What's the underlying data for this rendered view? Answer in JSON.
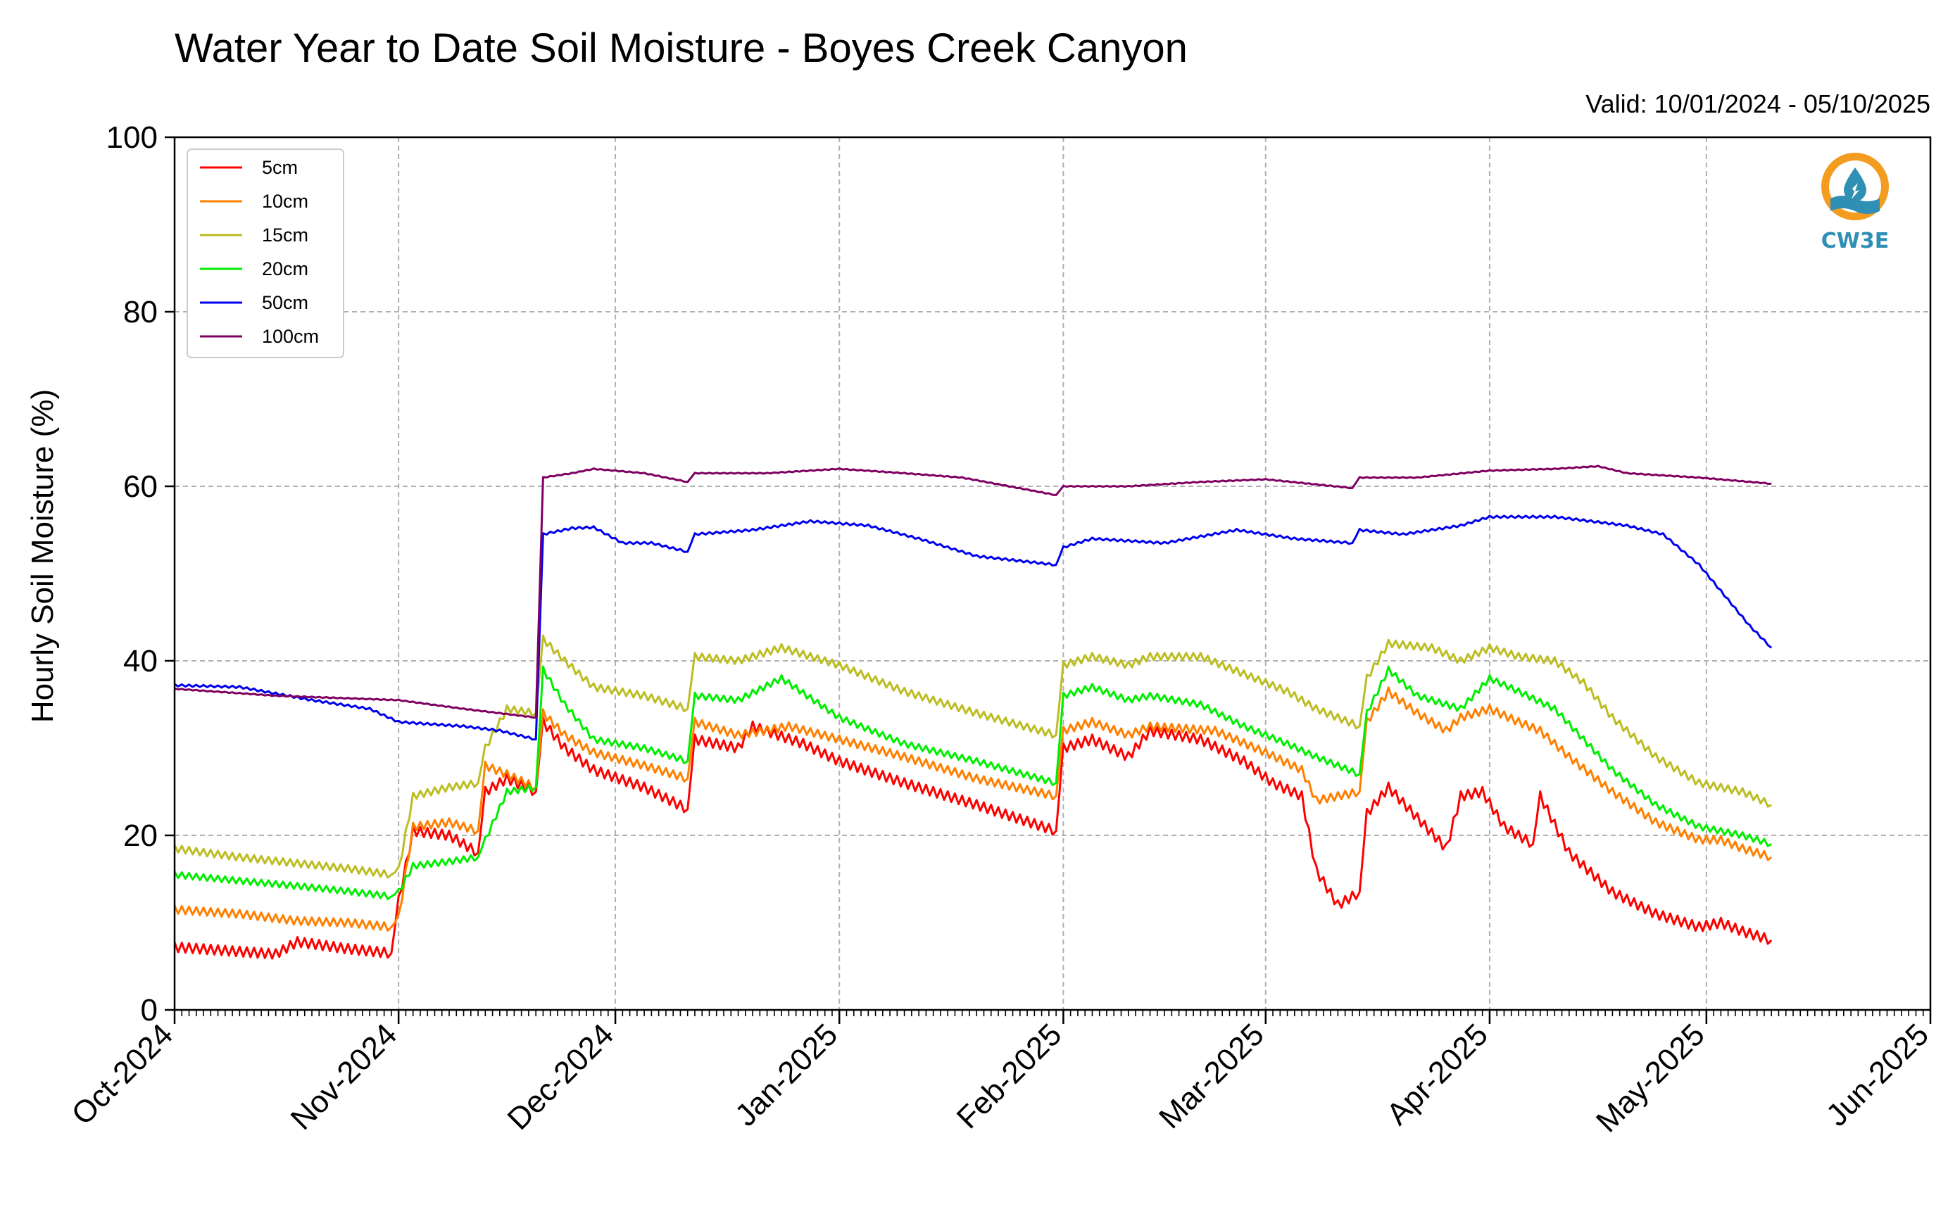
{
  "title": "Water Year to Date Soil Moisture - Boyes Creek Canyon",
  "valid_range": "Valid: 10/01/2024 - 05/10/2025",
  "logo": {
    "text": "CW3E",
    "icon": "water-drop-logo-icon",
    "colors": {
      "ring": "#f39c1f",
      "waves": "#2f8fb5"
    }
  },
  "chart_data": {
    "type": "line",
    "title": "Water Year to Date Soil Moisture - Boyes Creek Canyon",
    "xlabel": "",
    "ylabel": "Hourly Soil Moisture (%)",
    "ylim": [
      0,
      100
    ],
    "xlim": [
      "2024-10-01",
      "2025-06-01"
    ],
    "yticks": [
      0,
      20,
      40,
      60,
      80,
      100
    ],
    "xticks": [
      {
        "date": "2024-10-01",
        "label": "Oct-2024"
      },
      {
        "date": "2024-11-01",
        "label": "Nov-2024"
      },
      {
        "date": "2024-12-01",
        "label": "Dec-2024"
      },
      {
        "date": "2025-01-01",
        "label": "Jan-2025"
      },
      {
        "date": "2025-02-01",
        "label": "Feb-2025"
      },
      {
        "date": "2025-03-01",
        "label": "Mar-2025"
      },
      {
        "date": "2025-04-01",
        "label": "Apr-2025"
      },
      {
        "date": "2025-05-01",
        "label": "May-2025"
      },
      {
        "date": "2025-06-01",
        "label": "Jun-2025"
      }
    ],
    "grid": true,
    "legend_position": "top-left",
    "series": [
      {
        "name": "5cm",
        "color": "#ff0000",
        "points": [
          [
            "2024-10-01",
            7.2
          ],
          [
            "2024-10-08",
            6.8
          ],
          [
            "2024-10-15",
            6.4
          ],
          [
            "2024-10-18",
            7.8
          ],
          [
            "2024-10-25",
            7.0
          ],
          [
            "2024-10-31",
            6.5
          ],
          [
            "2024-11-01",
            12.5
          ],
          [
            "2024-11-03",
            20.5
          ],
          [
            "2024-11-08",
            20.0
          ],
          [
            "2024-11-12",
            18.0
          ],
          [
            "2024-11-13",
            25.0
          ],
          [
            "2024-11-16",
            26.5
          ],
          [
            "2024-11-20",
            25.0
          ],
          [
            "2024-11-21",
            33.0
          ],
          [
            "2024-11-24",
            30.0
          ],
          [
            "2024-11-28",
            27.5
          ],
          [
            "2024-12-05",
            25.5
          ],
          [
            "2024-12-11",
            23.0
          ],
          [
            "2024-12-12",
            31.0
          ],
          [
            "2024-12-18",
            30.0
          ],
          [
            "2024-12-20",
            32.5
          ],
          [
            "2024-12-27",
            30.5
          ],
          [
            "2025-01-01",
            28.5
          ],
          [
            "2025-01-10",
            26.0
          ],
          [
            "2025-01-20",
            23.5
          ],
          [
            "2025-01-31",
            20.5
          ],
          [
            "2025-02-01",
            30.0
          ],
          [
            "2025-02-05",
            31.0
          ],
          [
            "2025-02-10",
            29.0
          ],
          [
            "2025-02-13",
            32.0
          ],
          [
            "2025-02-20",
            31.0
          ],
          [
            "2025-02-26",
            28.5
          ],
          [
            "2025-03-02",
            26.0
          ],
          [
            "2025-03-06",
            24.5
          ],
          [
            "2025-03-08",
            16.0
          ],
          [
            "2025-03-11",
            12.0
          ],
          [
            "2025-03-14",
            13.5
          ],
          [
            "2025-03-15",
            22.5
          ],
          [
            "2025-03-18",
            25.5
          ],
          [
            "2025-03-22",
            22.0
          ],
          [
            "2025-03-26",
            18.5
          ],
          [
            "2025-03-28",
            24.5
          ],
          [
            "2025-03-31",
            25.0
          ],
          [
            "2025-04-03",
            21.0
          ],
          [
            "2025-04-07",
            19.0
          ],
          [
            "2025-04-08",
            24.5
          ],
          [
            "2025-04-12",
            18.0
          ],
          [
            "2025-04-18",
            13.5
          ],
          [
            "2025-04-24",
            11.0
          ],
          [
            "2025-04-30",
            9.5
          ],
          [
            "2025-05-03",
            10.0
          ],
          [
            "2025-05-06",
            9.0
          ],
          [
            "2025-05-10",
            8.0
          ]
        ]
      },
      {
        "name": "10cm",
        "color": "#ff8000",
        "points": [
          [
            "2024-10-01",
            11.5
          ],
          [
            "2024-10-10",
            11.0
          ],
          [
            "2024-10-18",
            10.2
          ],
          [
            "2024-10-25",
            10.0
          ],
          [
            "2024-10-31",
            9.5
          ],
          [
            "2024-11-01",
            10.5
          ],
          [
            "2024-11-03",
            21.0
          ],
          [
            "2024-11-08",
            21.5
          ],
          [
            "2024-11-12",
            20.5
          ],
          [
            "2024-11-13",
            28.0
          ],
          [
            "2024-11-16",
            27.0
          ],
          [
            "2024-11-20",
            25.5
          ],
          [
            "2024-11-21",
            34.0
          ],
          [
            "2024-11-24",
            31.5
          ],
          [
            "2024-11-28",
            29.5
          ],
          [
            "2024-12-05",
            28.0
          ],
          [
            "2024-12-11",
            26.5
          ],
          [
            "2024-12-12",
            33.0
          ],
          [
            "2024-12-18",
            31.5
          ],
          [
            "2024-12-25",
            32.5
          ],
          [
            "2025-01-01",
            31.0
          ],
          [
            "2025-01-10",
            29.0
          ],
          [
            "2025-01-20",
            26.5
          ],
          [
            "2025-01-31",
            24.5
          ],
          [
            "2025-02-01",
            32.0
          ],
          [
            "2025-02-05",
            33.0
          ],
          [
            "2025-02-10",
            31.5
          ],
          [
            "2025-02-13",
            32.5
          ],
          [
            "2025-02-22",
            32.0
          ],
          [
            "2025-03-01",
            29.5
          ],
          [
            "2025-03-06",
            27.5
          ],
          [
            "2025-03-08",
            24.0
          ],
          [
            "2025-03-14",
            25.0
          ],
          [
            "2025-03-15",
            33.0
          ],
          [
            "2025-03-18",
            36.5
          ],
          [
            "2025-03-22",
            34.0
          ],
          [
            "2025-03-26",
            32.0
          ],
          [
            "2025-03-28",
            33.5
          ],
          [
            "2025-04-01",
            34.5
          ],
          [
            "2025-04-05",
            33.0
          ],
          [
            "2025-04-08",
            32.0
          ],
          [
            "2025-04-12",
            29.0
          ],
          [
            "2025-04-18",
            25.0
          ],
          [
            "2025-04-24",
            21.5
          ],
          [
            "2025-04-30",
            19.5
          ],
          [
            "2025-05-03",
            19.5
          ],
          [
            "2025-05-06",
            18.5
          ],
          [
            "2025-05-10",
            17.5
          ]
        ]
      },
      {
        "name": "15cm",
        "color": "#bcbd22",
        "points": [
          [
            "2024-10-01",
            18.5
          ],
          [
            "2024-10-10",
            17.5
          ],
          [
            "2024-10-18",
            16.8
          ],
          [
            "2024-10-25",
            16.2
          ],
          [
            "2024-10-31",
            15.5
          ],
          [
            "2024-11-01",
            16.0
          ],
          [
            "2024-11-03",
            24.5
          ],
          [
            "2024-11-08",
            25.5
          ],
          [
            "2024-11-12",
            26.0
          ],
          [
            "2024-11-13",
            30.0
          ],
          [
            "2024-11-16",
            34.5
          ],
          [
            "2024-11-20",
            34.0
          ],
          [
            "2024-11-21",
            42.5
          ],
          [
            "2024-11-24",
            40.0
          ],
          [
            "2024-11-28",
            37.0
          ],
          [
            "2024-12-05",
            36.0
          ],
          [
            "2024-12-11",
            34.5
          ],
          [
            "2024-12-12",
            40.5
          ],
          [
            "2024-12-18",
            40.0
          ],
          [
            "2024-12-24",
            41.5
          ],
          [
            "2025-01-01",
            39.5
          ],
          [
            "2025-01-10",
            36.5
          ],
          [
            "2025-01-20",
            34.0
          ],
          [
            "2025-01-31",
            31.5
          ],
          [
            "2025-02-01",
            39.5
          ],
          [
            "2025-02-05",
            40.5
          ],
          [
            "2025-02-10",
            39.5
          ],
          [
            "2025-02-13",
            40.5
          ],
          [
            "2025-02-20",
            40.5
          ],
          [
            "2025-02-26",
            38.5
          ],
          [
            "2025-03-04",
            36.5
          ],
          [
            "2025-03-08",
            34.5
          ],
          [
            "2025-03-14",
            32.5
          ],
          [
            "2025-03-15",
            38.0
          ],
          [
            "2025-03-18",
            42.0
          ],
          [
            "2025-03-24",
            41.5
          ],
          [
            "2025-03-28",
            40.0
          ],
          [
            "2025-04-01",
            41.5
          ],
          [
            "2025-04-05",
            40.5
          ],
          [
            "2025-04-10",
            40.0
          ],
          [
            "2025-04-14",
            37.5
          ],
          [
            "2025-04-18",
            33.5
          ],
          [
            "2025-04-24",
            29.0
          ],
          [
            "2025-04-30",
            26.0
          ],
          [
            "2025-05-03",
            25.5
          ],
          [
            "2025-05-06",
            25.0
          ],
          [
            "2025-05-10",
            23.5
          ]
        ]
      },
      {
        "name": "20cm",
        "color": "#00ee00",
        "points": [
          [
            "2024-10-01",
            15.5
          ],
          [
            "2024-10-10",
            14.8
          ],
          [
            "2024-10-18",
            14.2
          ],
          [
            "2024-10-25",
            13.6
          ],
          [
            "2024-10-31",
            13.0
          ],
          [
            "2024-11-01",
            13.5
          ],
          [
            "2024-11-03",
            16.5
          ],
          [
            "2024-11-08",
            17.0
          ],
          [
            "2024-11-12",
            17.5
          ],
          [
            "2024-11-13",
            19.5
          ],
          [
            "2024-11-16",
            25.0
          ],
          [
            "2024-11-20",
            25.5
          ],
          [
            "2024-11-21",
            39.0
          ],
          [
            "2024-11-24",
            35.0
          ],
          [
            "2024-11-28",
            31.0
          ],
          [
            "2024-12-05",
            30.0
          ],
          [
            "2024-12-11",
            28.5
          ],
          [
            "2024-12-12",
            36.0
          ],
          [
            "2024-12-18",
            35.5
          ],
          [
            "2024-12-24",
            38.0
          ],
          [
            "2025-01-01",
            33.5
          ],
          [
            "2025-01-10",
            30.5
          ],
          [
            "2025-01-20",
            28.5
          ],
          [
            "2025-01-31",
            26.0
          ],
          [
            "2025-02-01",
            36.0
          ],
          [
            "2025-02-05",
            37.0
          ],
          [
            "2025-02-10",
            35.5
          ],
          [
            "2025-02-13",
            36.0
          ],
          [
            "2025-02-20",
            35.0
          ],
          [
            "2025-02-26",
            32.5
          ],
          [
            "2025-03-04",
            30.5
          ],
          [
            "2025-03-08",
            29.0
          ],
          [
            "2025-03-14",
            27.0
          ],
          [
            "2025-03-15",
            34.0
          ],
          [
            "2025-03-18",
            39.0
          ],
          [
            "2025-03-22",
            36.0
          ],
          [
            "2025-03-28",
            34.5
          ],
          [
            "2025-04-01",
            38.0
          ],
          [
            "2025-04-05",
            36.5
          ],
          [
            "2025-04-10",
            34.5
          ],
          [
            "2025-04-14",
            31.0
          ],
          [
            "2025-04-18",
            27.5
          ],
          [
            "2025-04-24",
            23.5
          ],
          [
            "2025-04-30",
            21.0
          ],
          [
            "2025-05-03",
            20.5
          ],
          [
            "2025-05-06",
            20.0
          ],
          [
            "2025-05-10",
            19.0
          ]
        ]
      },
      {
        "name": "50cm",
        "color": "#0000ee",
        "points": [
          [
            "2024-10-01",
            37.2
          ],
          [
            "2024-10-10",
            37.0
          ],
          [
            "2024-10-20",
            35.5
          ],
          [
            "2024-10-28",
            34.5
          ],
          [
            "2024-11-01",
            33.0
          ],
          [
            "2024-11-10",
            32.5
          ],
          [
            "2024-11-15",
            32.0
          ],
          [
            "2024-11-20",
            31.0
          ],
          [
            "2024-11-21",
            54.5
          ],
          [
            "2024-11-25",
            55.2
          ],
          [
            "2024-11-28",
            55.3
          ],
          [
            "2024-12-02",
            53.5
          ],
          [
            "2024-12-06",
            53.5
          ],
          [
            "2024-12-11",
            52.5
          ],
          [
            "2024-12-12",
            54.5
          ],
          [
            "2024-12-20",
            55.0
          ],
          [
            "2024-12-28",
            56.0
          ],
          [
            "2025-01-05",
            55.5
          ],
          [
            "2025-01-12",
            54.0
          ],
          [
            "2025-01-20",
            52.0
          ],
          [
            "2025-01-31",
            51.0
          ],
          [
            "2025-02-01",
            53.0
          ],
          [
            "2025-02-05",
            54.0
          ],
          [
            "2025-02-15",
            53.5
          ],
          [
            "2025-02-25",
            55.0
          ],
          [
            "2025-03-05",
            54.0
          ],
          [
            "2025-03-13",
            53.5
          ],
          [
            "2025-03-14",
            55.0
          ],
          [
            "2025-03-20",
            54.5
          ],
          [
            "2025-03-28",
            55.5
          ],
          [
            "2025-04-01",
            56.5
          ],
          [
            "2025-04-10",
            56.5
          ],
          [
            "2025-04-20",
            55.5
          ],
          [
            "2025-04-25",
            54.5
          ],
          [
            "2025-04-30",
            51.0
          ],
          [
            "2025-05-04",
            47.0
          ],
          [
            "2025-05-07",
            44.0
          ],
          [
            "2025-05-10",
            41.5
          ]
        ]
      },
      {
        "name": "100cm",
        "color": "#7f0060",
        "points": [
          [
            "2024-10-01",
            36.8
          ],
          [
            "2024-10-15",
            36.0
          ],
          [
            "2024-11-01",
            35.5
          ],
          [
            "2024-11-10",
            34.5
          ],
          [
            "2024-11-20",
            33.5
          ],
          [
            "2024-11-21",
            61.0
          ],
          [
            "2024-11-25",
            61.5
          ],
          [
            "2024-11-28",
            62.0
          ],
          [
            "2024-12-05",
            61.5
          ],
          [
            "2024-12-11",
            60.5
          ],
          [
            "2024-12-12",
            61.5
          ],
          [
            "2024-12-22",
            61.5
          ],
          [
            "2025-01-01",
            62.0
          ],
          [
            "2025-01-10",
            61.5
          ],
          [
            "2025-01-18",
            61.0
          ],
          [
            "2025-01-31",
            59.0
          ],
          [
            "2025-02-01",
            60.0
          ],
          [
            "2025-02-10",
            60.0
          ],
          [
            "2025-02-20",
            60.5
          ],
          [
            "2025-03-01",
            60.8
          ],
          [
            "2025-03-13",
            59.8
          ],
          [
            "2025-03-14",
            61.0
          ],
          [
            "2025-03-22",
            61.0
          ],
          [
            "2025-04-01",
            61.8
          ],
          [
            "2025-04-10",
            62.0
          ],
          [
            "2025-04-16",
            62.3
          ],
          [
            "2025-04-20",
            61.5
          ],
          [
            "2025-04-30",
            61.0
          ],
          [
            "2025-05-10",
            60.3
          ]
        ]
      }
    ]
  }
}
